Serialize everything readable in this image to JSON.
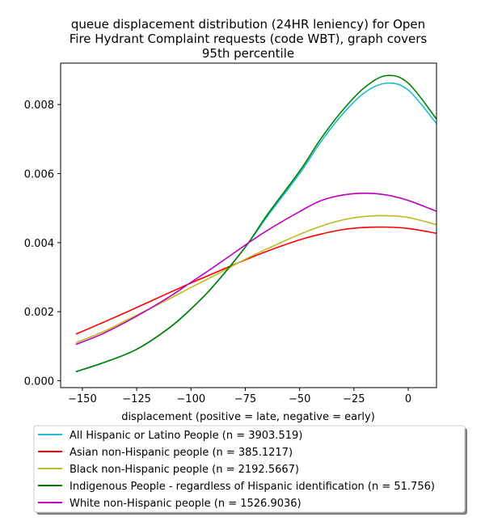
{
  "chart_data": {
    "type": "line",
    "title": "queue displacement distribution (24HR leniency) for Open Fire Hydrant Complaint  requests (code WBT), graph covers 95th percentile",
    "title_lines": [
      "queue displacement distribution (24HR leniency) for Open",
      "Fire Hydrant Complaint  requests (code WBT), graph covers",
      "95th percentile"
    ],
    "xlabel": "displacement (positive = late, negative = early)",
    "ylabel": "",
    "xlim": [
      -160,
      13
    ],
    "ylim": [
      -0.0002,
      0.0092
    ],
    "xticks": [
      -150,
      -125,
      -100,
      -75,
      -50,
      -25,
      0
    ],
    "xtick_labels": [
      "−150",
      "−125",
      "−100",
      "−75",
      "−50",
      "−25",
      "0"
    ],
    "yticks": [
      0.0,
      0.002,
      0.004,
      0.006,
      0.008
    ],
    "ytick_labels": [
      "0.000",
      "0.002",
      "0.004",
      "0.006",
      "0.008"
    ],
    "grid": false,
    "legend_position": "below",
    "x": [
      -153,
      -140,
      -125,
      -110,
      -100,
      -90,
      -75,
      -65,
      -50,
      -40,
      -30,
      -20,
      -10,
      0,
      13
    ],
    "series": [
      {
        "name": "All Hispanic or Latino People (n = 3903.519)",
        "color": "#17becf",
        "values": [
          0.00026,
          0.00053,
          0.00091,
          0.00153,
          0.00208,
          0.00272,
          0.00387,
          0.00475,
          0.006,
          0.00694,
          0.00774,
          0.00835,
          0.00862,
          0.00842,
          0.00745
        ]
      },
      {
        "name": "Asian non-Hispanic people (n = 385.1217)",
        "color": "#ff0000",
        "values": [
          0.00135,
          0.0017,
          0.00212,
          0.00255,
          0.00283,
          0.0031,
          0.0035,
          0.00375,
          0.00408,
          0.00425,
          0.00438,
          0.00444,
          0.00445,
          0.00441,
          0.00427
        ]
      },
      {
        "name": "Black non-Hispanic people (n = 2192.5667)",
        "color": "#bcbd22",
        "values": [
          0.0011,
          0.00143,
          0.0019,
          0.00237,
          0.0027,
          0.00302,
          0.00352,
          0.00382,
          0.00424,
          0.00448,
          0.00466,
          0.00476,
          0.00478,
          0.00473,
          0.00452
        ]
      },
      {
        "name": "Indigenous People - regardless of Hispanic identification (n = 51.756)",
        "color": "#008000",
        "values": [
          0.00026,
          0.00053,
          0.00091,
          0.00153,
          0.00208,
          0.00272,
          0.00387,
          0.0048,
          0.00607,
          0.00703,
          0.00785,
          0.0085,
          0.00884,
          0.00862,
          0.00758
        ]
      },
      {
        "name": "White non-Hispanic people (n = 1526.9036)",
        "color": "#bf00bf",
        "values": [
          0.00105,
          0.00138,
          0.00187,
          0.00243,
          0.00285,
          0.00327,
          0.00393,
          0.00435,
          0.0049,
          0.00522,
          0.00538,
          0.00543,
          0.00538,
          0.00522,
          0.00491
        ]
      }
    ]
  }
}
